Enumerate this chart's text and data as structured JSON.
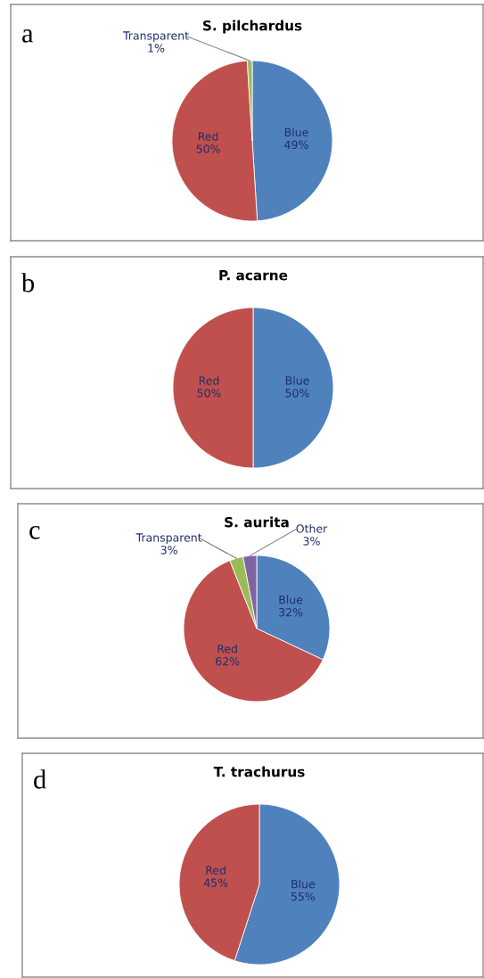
{
  "chart_data": [
    {
      "type": "pie",
      "title": "S. pilchardus",
      "annotations": [
        "a"
      ],
      "categories": [
        "Blue",
        "Red",
        "Transparent"
      ],
      "values": [
        49,
        50,
        1
      ],
      "value_labels": [
        "49%",
        "50%",
        "1%"
      ],
      "colors": [
        "#4f81bd",
        "#c0504d",
        "#9bbb59"
      ]
    },
    {
      "type": "pie",
      "title": "P. acarne",
      "annotations": [
        "b"
      ],
      "categories": [
        "Blue",
        "Red"
      ],
      "values": [
        50,
        50
      ],
      "value_labels": [
        "50%",
        "50%"
      ],
      "colors": [
        "#4f81bd",
        "#c0504d"
      ]
    },
    {
      "type": "pie",
      "title": "S. aurita",
      "annotations": [
        "c"
      ],
      "categories": [
        "Blue",
        "Red",
        "Transparent",
        "Other"
      ],
      "values": [
        32,
        62,
        3,
        3
      ],
      "value_labels": [
        "32%",
        "62%",
        "3%",
        "3%"
      ],
      "colors": [
        "#4f81bd",
        "#c0504d",
        "#9bbb59",
        "#8064a2"
      ]
    },
    {
      "type": "pie",
      "title": "T. trachurus",
      "annotations": [
        "d"
      ],
      "categories": [
        "Blue",
        "Red"
      ],
      "values": [
        55,
        45
      ],
      "value_labels": [
        "55%",
        "45%"
      ],
      "colors": [
        "#4f81bd",
        "#c0504d"
      ]
    }
  ]
}
